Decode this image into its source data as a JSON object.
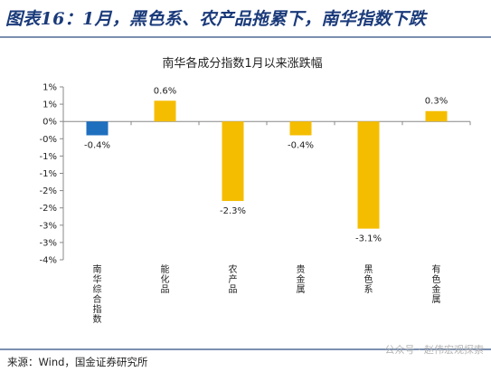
{
  "figure_title": "图表16：1月，黑色系、农产品拖累下，南华指数下跌",
  "source": "来源：Wind，国金证券研究所",
  "watermark": "公众号 · 赵伟宏观探索",
  "chart_data": {
    "type": "bar",
    "title": "南华各成分指数1月以来涨跌幅",
    "categories": [
      "南华综合指数",
      "能化品",
      "农产品",
      "贵金属",
      "黑色系",
      "有色金属"
    ],
    "values": [
      -0.4,
      0.6,
      -2.3,
      -0.4,
      -3.1,
      0.3
    ],
    "data_labels": [
      "-0.4%",
      "0.6%",
      "-2.3%",
      "-0.4%",
      "-3.1%",
      "0.3%"
    ],
    "ylim": [
      -4,
      1
    ],
    "yticks": [
      1,
      0.5,
      0,
      -0.5,
      -1,
      -1.5,
      -2,
      -2.5,
      -3,
      -3.5,
      -4
    ],
    "ytick_labels": [
      "1%",
      "1%",
      "0%",
      "-0%",
      "-1%",
      "-1%",
      "-2%",
      "-2%",
      "-3%",
      "-3%",
      "-4%"
    ],
    "bar_colors": [
      "#1f6fbf",
      "#f5bd00",
      "#f5bd00",
      "#f5bd00",
      "#f5bd00",
      "#f5bd00"
    ],
    "axis_color": "#888888",
    "grid": false,
    "legend": "none"
  }
}
